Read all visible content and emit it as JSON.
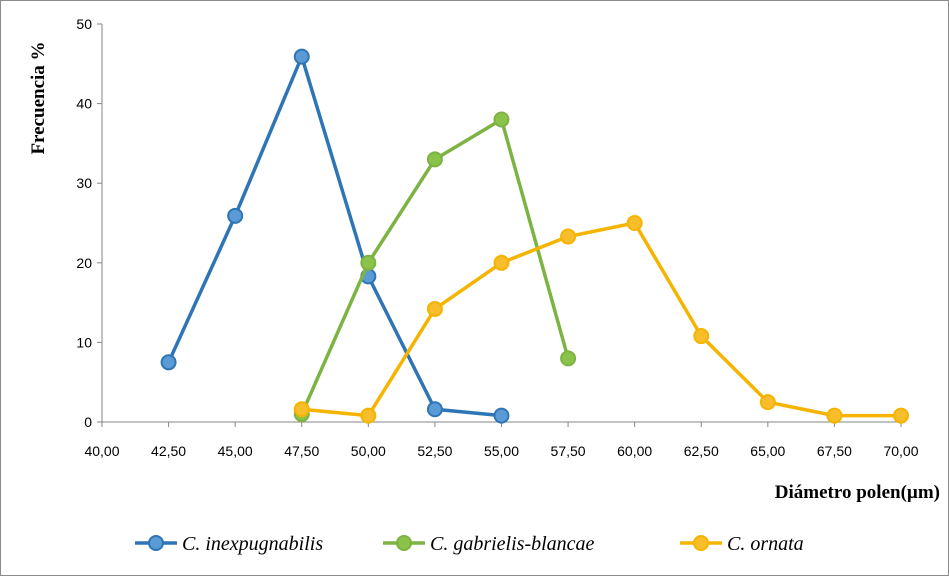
{
  "chart_data": {
    "type": "line",
    "title": "",
    "xlabel": "Diámetro polen(µm)",
    "ylabel": "Frecuencia %",
    "xlim": [
      40,
      70
    ],
    "ylim": [
      0,
      50
    ],
    "x_ticks": [
      "40,00",
      "42,50",
      "45,00",
      "47,50",
      "50,00",
      "52,50",
      "55,00",
      "57,50",
      "60,00",
      "62,50",
      "65,00",
      "67,50",
      "70,00"
    ],
    "y_ticks": [
      "0",
      "10",
      "20",
      "30",
      "40",
      "50"
    ],
    "grid": false,
    "legend_position": "bottom",
    "series": [
      {
        "name": "C. inexpugnabilis",
        "color": "#2e75b6",
        "marker_fill": "#5b9bd5",
        "points": [
          [
            42.5,
            7.5
          ],
          [
            45,
            25.9
          ],
          [
            47.5,
            45.9
          ],
          [
            50,
            18.3
          ],
          [
            52.5,
            1.6
          ],
          [
            55,
            0.8
          ]
        ]
      },
      {
        "name": "C. gabrielis-blancae",
        "color": "#7cb342",
        "marker_fill": "#8bc34a",
        "points": [
          [
            47.5,
            1.0
          ],
          [
            50,
            20.0
          ],
          [
            52.5,
            33.0
          ],
          [
            55,
            38.0
          ],
          [
            57.5,
            8.0
          ]
        ]
      },
      {
        "name": "C. ornata",
        "color": "#f4b400",
        "marker_fill": "#f7bd2b",
        "points": [
          [
            47.5,
            1.6
          ],
          [
            50,
            0.8
          ],
          [
            52.5,
            14.2
          ],
          [
            55,
            20.0
          ],
          [
            57.5,
            23.3
          ],
          [
            60,
            25.0
          ],
          [
            62.5,
            10.8
          ],
          [
            65,
            2.5
          ],
          [
            67.5,
            0.8
          ],
          [
            70,
            0.8
          ]
        ]
      }
    ]
  }
}
